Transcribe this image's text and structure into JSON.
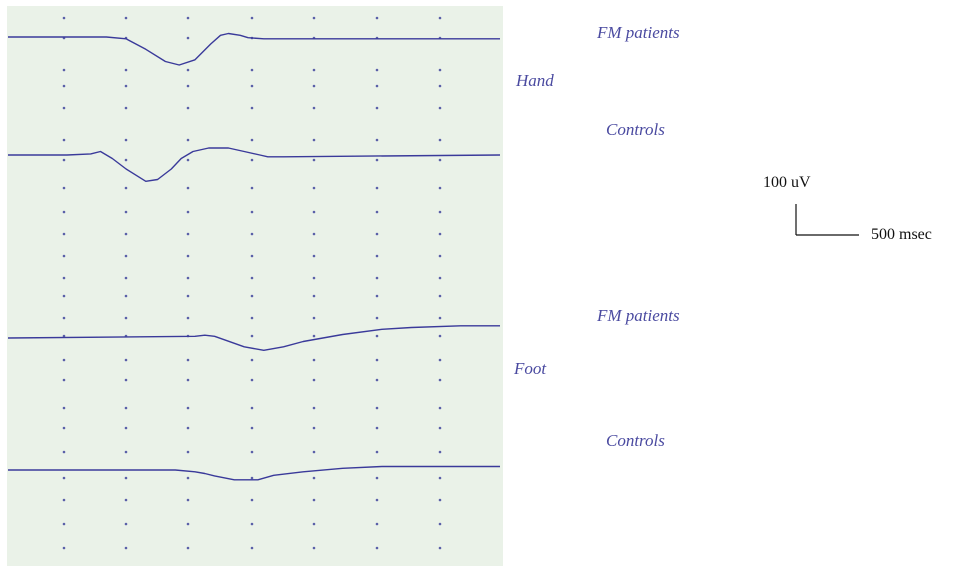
{
  "chart_data": {
    "type": "line",
    "title": "",
    "colors": {
      "panel": "#eaf2e8",
      "trace": "#3a3a9a",
      "label": "#4a4aa0",
      "grid": "#5a5fa8"
    },
    "x_unit": "msec",
    "y_unit": "uV",
    "scale_bar": {
      "amplitude_label": "100 uV",
      "time_label": "500 msec",
      "amplitude_uV": 100,
      "time_ms": 500
    },
    "groups": [
      {
        "name": "Hand",
        "traces": [
          {
            "name": "FM patients"
          },
          {
            "name": "Controls"
          }
        ]
      },
      {
        "name": "Foot",
        "traces": [
          {
            "name": "FM patients"
          },
          {
            "name": "Controls"
          }
        ]
      }
    ],
    "series": [
      {
        "name": "FM patients",
        "group": "Hand",
        "points": [
          [
            0,
            0
          ],
          [
            500,
            0
          ],
          [
            600,
            -5
          ],
          [
            700,
            -35
          ],
          [
            800,
            -70
          ],
          [
            870,
            -80
          ],
          [
            950,
            -65
          ],
          [
            1030,
            -20
          ],
          [
            1080,
            5
          ],
          [
            1120,
            10
          ],
          [
            1180,
            5
          ],
          [
            1220,
            -2
          ],
          [
            1300,
            -5
          ],
          [
            2450,
            -5
          ],
          [
            2500,
            -5
          ]
        ]
      },
      {
        "name": "Controls",
        "group": "Hand",
        "points": [
          [
            0,
            0
          ],
          [
            300,
            0
          ],
          [
            420,
            3
          ],
          [
            470,
            10
          ],
          [
            530,
            -10
          ],
          [
            600,
            -40
          ],
          [
            700,
            -75
          ],
          [
            760,
            -70
          ],
          [
            830,
            -40
          ],
          [
            880,
            -10
          ],
          [
            940,
            10
          ],
          [
            1020,
            20
          ],
          [
            1120,
            20
          ],
          [
            1200,
            10
          ],
          [
            1280,
            0
          ],
          [
            1320,
            -5
          ],
          [
            1400,
            -5
          ],
          [
            2500,
            0
          ]
        ]
      },
      {
        "name": "FM patients",
        "group": "Foot",
        "points": [
          [
            0,
            0
          ],
          [
            950,
            5
          ],
          [
            1000,
            8
          ],
          [
            1050,
            5
          ],
          [
            1100,
            -5
          ],
          [
            1200,
            -25
          ],
          [
            1300,
            -35
          ],
          [
            1400,
            -25
          ],
          [
            1500,
            -10
          ],
          [
            1700,
            10
          ],
          [
            1900,
            25
          ],
          [
            2050,
            30
          ],
          [
            2300,
            35
          ],
          [
            2500,
            35
          ]
        ]
      },
      {
        "name": "Controls",
        "group": "Foot",
        "points": [
          [
            0,
            0
          ],
          [
            850,
            0
          ],
          [
            950,
            -5
          ],
          [
            1000,
            -10
          ],
          [
            1050,
            -17
          ],
          [
            1150,
            -28
          ],
          [
            1270,
            -28
          ],
          [
            1350,
            -15
          ],
          [
            1500,
            -5
          ],
          [
            1700,
            5
          ],
          [
            1900,
            10
          ],
          [
            2500,
            10
          ]
        ]
      }
    ]
  }
}
